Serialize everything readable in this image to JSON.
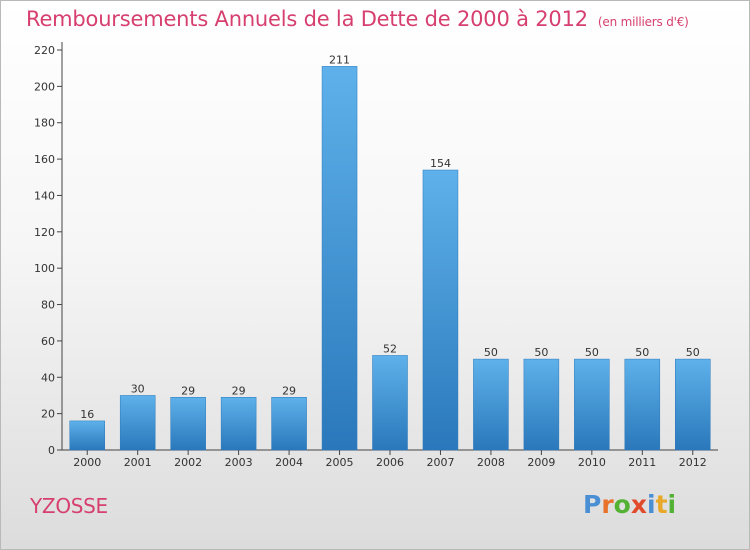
{
  "chart_data": {
    "type": "bar",
    "title": "Remboursements Annuels de la Dette de 2000 à 2012",
    "subtitle": "(en milliers d'€)",
    "categories": [
      "2000",
      "2001",
      "2002",
      "2003",
      "2004",
      "2005",
      "2006",
      "2007",
      "2008",
      "2009",
      "2010",
      "2011",
      "2012"
    ],
    "values": [
      16,
      30,
      29,
      29,
      29,
      211,
      52,
      154,
      50,
      50,
      50,
      50,
      50
    ],
    "data_labels": [
      "16",
      "30",
      "29",
      "29",
      "29",
      "211",
      "52",
      "154",
      "50",
      "50",
      "50",
      "50",
      "50"
    ],
    "ylim": [
      0,
      220
    ],
    "yticks": [
      0,
      20,
      40,
      60,
      80,
      100,
      120,
      140,
      160,
      180,
      200,
      220
    ],
    "xlabel": "",
    "ylabel": "",
    "grid": false,
    "legend": "none",
    "bar_color_top": "#5eb1ea",
    "bar_color_bottom": "#2a78bb"
  },
  "commune": "YZOSSE",
  "logo": {
    "text": "Proxiti",
    "letter_colors": [
      "#4a8fd4",
      "#e8722a",
      "#53b233",
      "#e24a2c",
      "#4a8fd4",
      "#e8a92a",
      "#53b233"
    ]
  },
  "colors": {
    "title": "#d63f6f",
    "axis": "#333333"
  }
}
